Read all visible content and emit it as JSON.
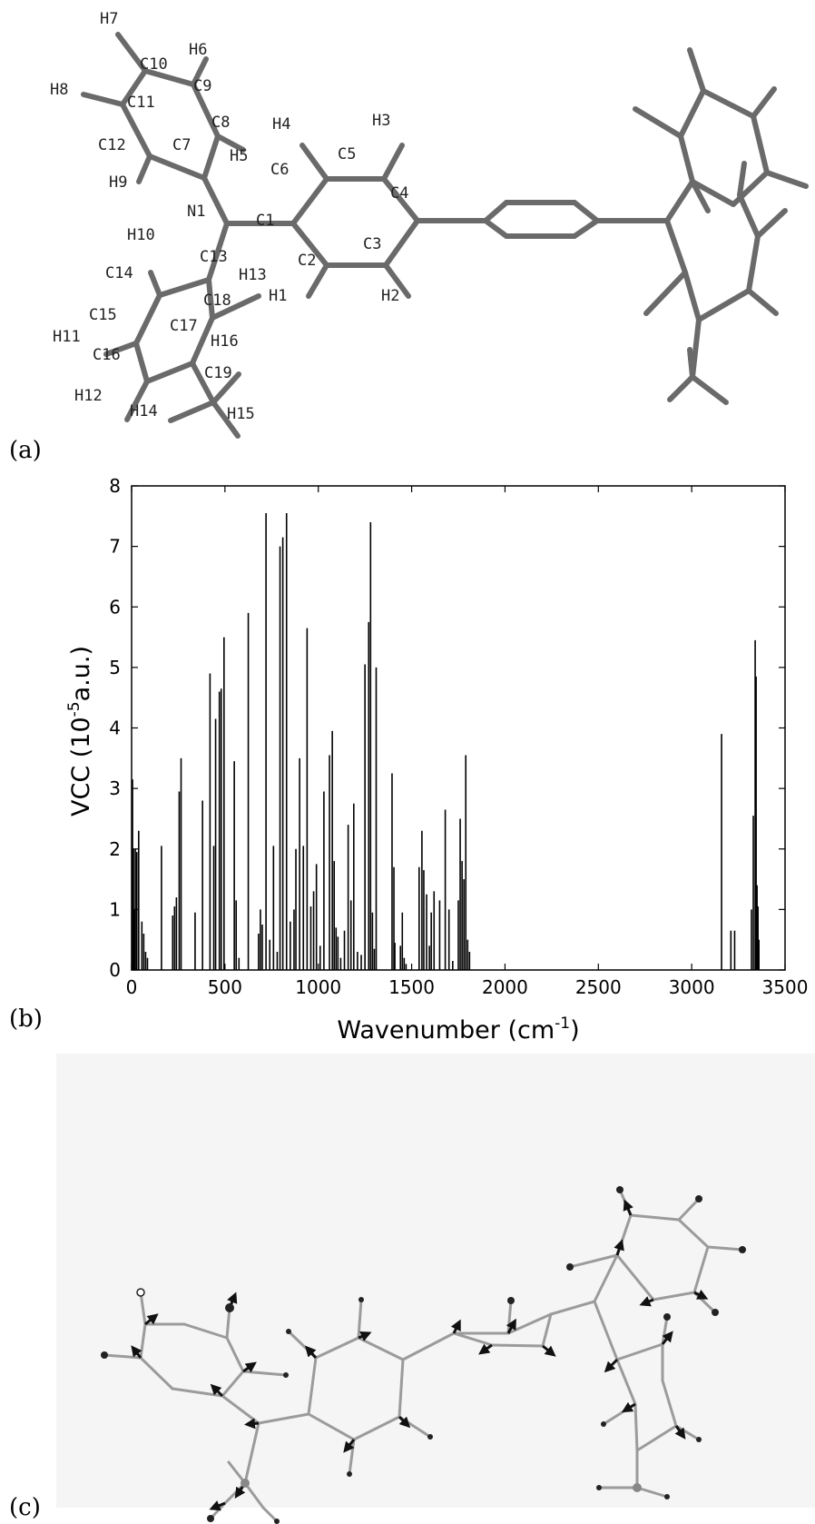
{
  "panels": {
    "a": {
      "label": "(a)",
      "atom_labels": [
        "H7",
        "C10",
        "H6",
        "H8",
        "C11",
        "C9",
        "C8",
        "H4",
        "H3",
        "C12",
        "C7",
        "H5",
        "C6",
        "C5",
        "H9",
        "N1",
        "C1",
        "C4",
        "H10",
        "C13",
        "C2",
        "C3",
        "C14",
        "H13",
        "C18",
        "H1",
        "H2",
        "C15",
        "C17",
        "H16",
        "H11",
        "C16",
        "C19",
        "H12",
        "H14",
        "H15"
      ]
    },
    "b": {
      "label": "(b)"
    },
    "c": {
      "label": "(c)"
    }
  },
  "chart_data": {
    "type": "bar",
    "xlabel": "Wavenumber (cm⁻¹)",
    "ylabel": "VCC (10⁻⁵a.u.)",
    "xlabel_main": "Wavenumber (cm",
    "xlabel_sup": "-1",
    "xlabel_end": ")",
    "ylabel_main": "VCC (10",
    "ylabel_sup": "-5",
    "ylabel_end": "a.u.)",
    "xlim": [
      0,
      3500
    ],
    "ylim": [
      0,
      8
    ],
    "xticks": [
      0,
      500,
      1000,
      1500,
      2000,
      2500,
      3000,
      3500
    ],
    "yticks": [
      0,
      1,
      2,
      3,
      4,
      5,
      6,
      7,
      8
    ],
    "grid": false,
    "x": [
      5,
      10,
      15,
      20,
      28,
      38,
      55,
      65,
      75,
      85,
      160,
      220,
      230,
      240,
      255,
      265,
      340,
      380,
      420,
      440,
      450,
      470,
      480,
      495,
      550,
      560,
      575,
      625,
      680,
      690,
      700,
      720,
      740,
      760,
      780,
      795,
      810,
      830,
      850,
      870,
      880,
      900,
      920,
      940,
      960,
      975,
      990,
      1010,
      1030,
      1060,
      1075,
      1085,
      1095,
      1105,
      1120,
      1140,
      1160,
      1175,
      1190,
      1210,
      1230,
      1250,
      1270,
      1280,
      1290,
      1300,
      1310,
      1395,
      1405,
      1410,
      1440,
      1450,
      1460,
      1470,
      1540,
      1555,
      1565,
      1580,
      1595,
      1605,
      1620,
      1650,
      1680,
      1700,
      1720,
      1750,
      1760,
      1770,
      1780,
      1790,
      1800,
      1810,
      3160,
      3210,
      3230,
      3320,
      3330,
      3340,
      3345,
      3350,
      3355,
      3360
    ],
    "values": [
      3.15,
      2.0,
      1.0,
      2.0,
      1.95,
      2.3,
      0.8,
      0.6,
      0.3,
      0.2,
      2.05,
      0.9,
      1.05,
      1.2,
      2.95,
      3.5,
      0.95,
      2.8,
      4.9,
      2.05,
      4.15,
      4.6,
      4.65,
      5.5,
      3.45,
      1.15,
      0.2,
      5.9,
      0.6,
      1.0,
      0.75,
      7.55,
      0.5,
      2.05,
      0.3,
      7.0,
      7.15,
      7.55,
      0.8,
      1.0,
      2.0,
      3.5,
      2.05,
      5.65,
      1.05,
      1.3,
      1.75,
      0.4,
      2.95,
      3.55,
      3.95,
      1.8,
      0.7,
      0.55,
      0.2,
      0.65,
      2.4,
      1.15,
      2.75,
      0.3,
      0.25,
      5.05,
      5.75,
      7.4,
      0.95,
      0.35,
      5.0,
      3.25,
      1.7,
      0.45,
      0.4,
      0.95,
      0.2,
      0.1,
      1.7,
      2.3,
      1.65,
      1.25,
      0.4,
      0.95,
      1.3,
      1.15,
      2.65,
      1.0,
      0.15,
      1.15,
      2.5,
      1.8,
      1.5,
      3.55,
      0.5,
      0.3,
      3.9,
      0.65,
      0.65,
      1.0,
      2.55,
      5.45,
      4.85,
      1.4,
      1.05,
      0.5
    ]
  }
}
